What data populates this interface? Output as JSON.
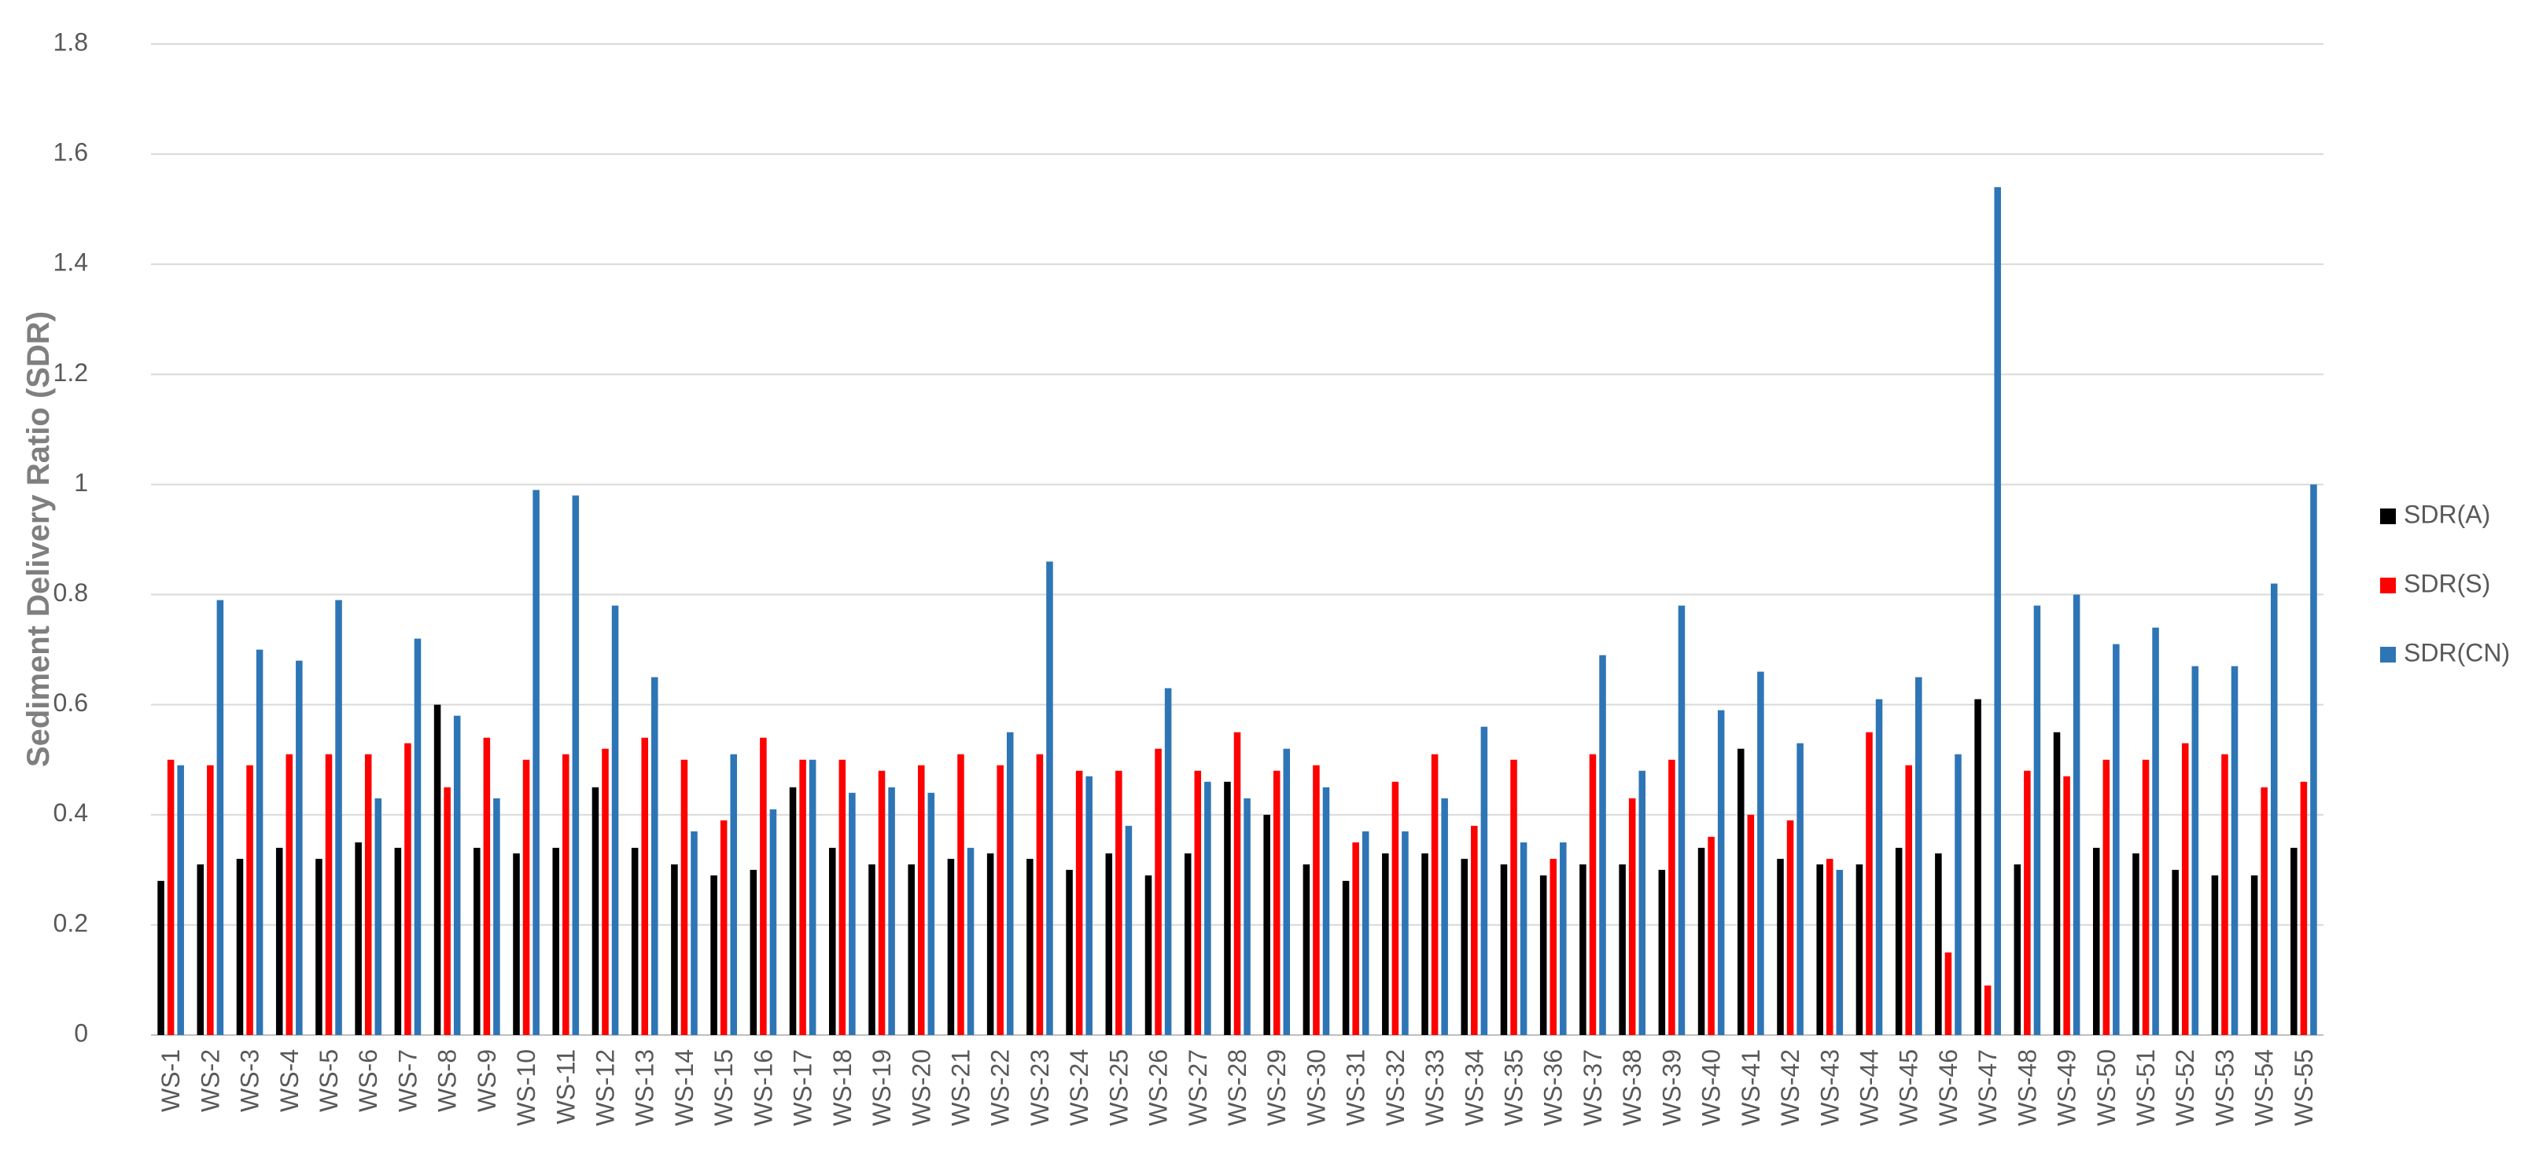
{
  "chart_data": {
    "type": "bar",
    "y_label": "Sediment Delivery Ratio (SDR)",
    "categories": [
      "WS-1",
      "WS-2",
      "WS-3",
      "WS-4",
      "WS-5",
      "WS-6",
      "WS-7",
      "WS-8",
      "WS-9",
      "WS-10",
      "WS-11",
      "WS-12",
      "WS-13",
      "WS-14",
      "WS-15",
      "WS-16",
      "WS-17",
      "WS-18",
      "WS-19",
      "WS-20",
      "WS-21",
      "WS-22",
      "WS-23",
      "WS-24",
      "WS-25",
      "WS-26",
      "WS-27",
      "WS-28",
      "WS-29",
      "WS-30",
      "WS-31",
      "WS-32",
      "WS-33",
      "WS-34",
      "WS-35",
      "WS-36",
      "WS-37",
      "WS-38",
      "WS-39",
      "WS-40",
      "WS-41",
      "WS-42",
      "WS-43",
      "WS-44",
      "WS-45",
      "WS-46",
      "WS-47",
      "WS-48",
      "WS-49",
      "WS-50",
      "WS-51",
      "WS-52",
      "WS-53",
      "WS-54",
      "WS-55"
    ],
    "series": [
      {
        "name": "SDR(A)",
        "color": "#000000",
        "values": [
          0.28,
          0.31,
          0.32,
          0.34,
          0.32,
          0.35,
          0.34,
          0.6,
          0.34,
          0.33,
          0.34,
          0.45,
          0.34,
          0.31,
          0.29,
          0.3,
          0.45,
          0.34,
          0.31,
          0.31,
          0.32,
          0.33,
          0.32,
          0.3,
          0.33,
          0.29,
          0.33,
          0.46,
          0.4,
          0.31,
          0.28,
          0.33,
          0.33,
          0.32,
          0.31,
          0.29,
          0.31,
          0.31,
          0.3,
          0.34,
          0.52,
          0.32,
          0.31,
          0.31,
          0.34,
          0.33,
          0.61,
          0.31,
          0.55,
          0.34,
          0.33,
          0.3,
          0.29,
          0.29,
          0.34
        ]
      },
      {
        "name": "SDR(S)",
        "color": "#ff0000",
        "values": [
          0.5,
          0.49,
          0.49,
          0.51,
          0.51,
          0.51,
          0.53,
          0.45,
          0.54,
          0.5,
          0.51,
          0.52,
          0.54,
          0.5,
          0.39,
          0.54,
          0.5,
          0.5,
          0.48,
          0.49,
          0.51,
          0.49,
          0.51,
          0.48,
          0.48,
          0.52,
          0.48,
          0.55,
          0.48,
          0.49,
          0.35,
          0.46,
          0.51,
          0.38,
          0.5,
          0.32,
          0.51,
          0.43,
          0.5,
          0.36,
          0.4,
          0.39,
          0.32,
          0.55,
          0.49,
          0.15,
          0.09,
          0.48,
          0.47,
          0.5,
          0.5,
          0.53,
          0.51,
          0.45,
          0.46
        ]
      },
      {
        "name": "SDR(CN)",
        "color": "#2e75b6",
        "values": [
          0.49,
          0.79,
          0.7,
          0.68,
          0.79,
          0.43,
          0.72,
          0.58,
          0.43,
          0.99,
          0.98,
          0.78,
          0.65,
          0.37,
          0.51,
          0.41,
          0.5,
          0.44,
          0.45,
          0.44,
          0.34,
          0.55,
          0.86,
          0.47,
          0.38,
          0.63,
          0.46,
          0.43,
          0.52,
          0.45,
          0.37,
          0.37,
          0.43,
          0.56,
          0.35,
          0.35,
          0.69,
          0.48,
          0.78,
          0.59,
          0.66,
          0.53,
          0.3,
          0.61,
          0.65,
          0.51,
          1.54,
          0.78,
          0.8,
          0.71,
          0.74,
          0.67,
          0.67,
          0.82,
          1.0
        ]
      }
    ],
    "ylim": [
      0,
      1.8
    ],
    "yticks": [
      0,
      0.2,
      0.4,
      0.6,
      0.8,
      1,
      1.2,
      1.4,
      1.6,
      1.8
    ],
    "grid": true,
    "legend": "right"
  }
}
